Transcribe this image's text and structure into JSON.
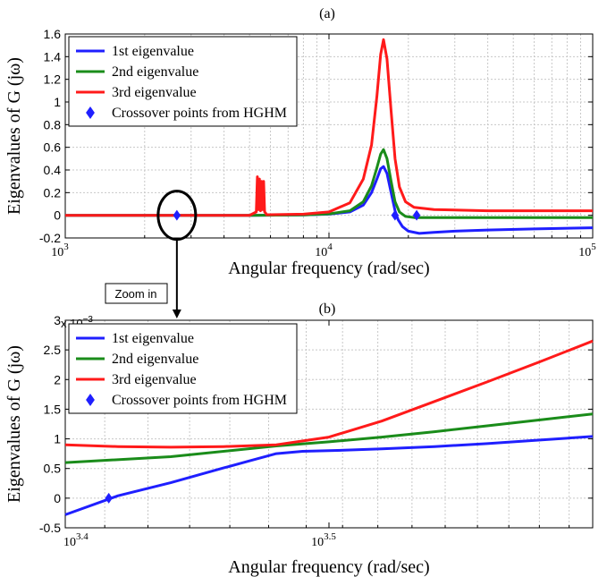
{
  "chart_data": [
    {
      "type": "line",
      "panel": "(a)",
      "title": "(a)",
      "xlabel": "Angular frequency (rad/sec)",
      "ylabel": "Eigenvalues of G (jω)",
      "xscale": "log",
      "xlim": [
        1000,
        100000
      ],
      "ylim": [
        -0.2,
        1.6
      ],
      "xtick_labels": [
        {
          "value": 1000,
          "base": "10",
          "exp": "3"
        },
        {
          "value": 10000,
          "base": "10",
          "exp": "4"
        },
        {
          "value": 100000,
          "base": "10",
          "exp": "5"
        }
      ],
      "yticks": [
        -0.2,
        0,
        0.2,
        0.4,
        0.6,
        0.8,
        1,
        1.2,
        1.4,
        1.6
      ],
      "grid": true,
      "legend_position": "top-left",
      "series": [
        {
          "name": "1st eigenvalue",
          "color": "#1f1fff",
          "x": [
            1000,
            2000,
            5000,
            8000,
            10000,
            12000,
            13500,
            14500,
            15200,
            15700,
            16100,
            16600,
            17200,
            17800,
            18300,
            19000,
            20000,
            22000,
            25000,
            30000,
            40000,
            60000,
            100000
          ],
          "y": [
            0,
            0,
            0,
            0.003,
            0.01,
            0.03,
            0.09,
            0.2,
            0.32,
            0.41,
            0.43,
            0.37,
            0.2,
            0.04,
            -0.04,
            -0.1,
            -0.14,
            -0.16,
            -0.15,
            -0.14,
            -0.13,
            -0.12,
            -0.11
          ]
        },
        {
          "name": "2nd eigenvalue",
          "color": "#1a8c1a",
          "x": [
            1000,
            2000,
            5000,
            8000,
            10000,
            12000,
            13500,
            14500,
            15200,
            15700,
            16100,
            16600,
            17200,
            17800,
            18500,
            19500,
            21000,
            25000,
            40000,
            100000
          ],
          "y": [
            0,
            0,
            0,
            0.004,
            0.012,
            0.04,
            0.12,
            0.26,
            0.42,
            0.54,
            0.58,
            0.5,
            0.3,
            0.12,
            0.03,
            -0.01,
            -0.02,
            -0.02,
            -0.02,
            -0.02
          ]
        },
        {
          "name": "3rd eigenvalue",
          "color": "#ff1a1a",
          "x": [
            1000,
            2000,
            5000,
            5300,
            5350,
            5400,
            5450,
            5500,
            5550,
            5600,
            5650,
            5700,
            5750,
            5800,
            6000,
            8000,
            10000,
            12000,
            13500,
            14500,
            15200,
            15700,
            16100,
            16600,
            17200,
            17800,
            18500,
            19500,
            21000,
            25000,
            40000,
            100000
          ],
          "y": [
            0,
            0,
            0,
            0.03,
            0.34,
            0.05,
            0.32,
            0.04,
            0.3,
            0.05,
            0.3,
            0.03,
            0.02,
            0.005,
            0.005,
            0.01,
            0.03,
            0.11,
            0.32,
            0.62,
            1.05,
            1.42,
            1.55,
            1.38,
            0.92,
            0.5,
            0.25,
            0.12,
            0.07,
            0.05,
            0.04,
            0.04
          ]
        }
      ],
      "crossover_points": {
        "name": "Crossover points from HGHM",
        "color": "#1f1fff",
        "x": [
          2650,
          17800,
          21500
        ],
        "y": [
          0,
          0,
          0
        ]
      },
      "annotation": {
        "label": "Zoom in",
        "circle_at": [
          2650,
          0
        ]
      }
    },
    {
      "type": "line",
      "panel": "(b)",
      "title": "(b)",
      "xlabel": "Angular frequency (rad/sec)",
      "ylabel": "Eigenvalues of G (jω)",
      "xscale": "log",
      "xlim_log10": [
        3.4,
        3.6
      ],
      "ylim": [
        -0.0005,
        0.003
      ],
      "y_multiplier": "x 10",
      "y_multiplier_exp": "−3",
      "xtick_labels": [
        {
          "log10": 3.4,
          "base": "10",
          "exp": "3.4"
        },
        {
          "log10": 3.5,
          "base": "10",
          "exp": "3.5"
        }
      ],
      "yticks": [
        -0.5,
        0,
        0.5,
        1,
        1.5,
        2,
        2.5,
        3
      ],
      "ytick_labels": [
        "-0.5",
        "0",
        "0.5",
        "1",
        "1.5",
        "2",
        "2.5",
        "3"
      ],
      "grid": true,
      "legend_position": "top-left",
      "series": [
        {
          "name": "1st eigenvalue",
          "color": "#1f1fff",
          "x_log10": [
            3.4,
            3.42,
            3.44,
            3.46,
            3.47,
            3.48,
            3.49,
            3.5,
            3.52,
            3.54,
            3.56,
            3.58,
            3.6
          ],
          "y": [
            -0.00028,
            4e-05,
            0.00026,
            0.00051,
            0.00063,
            0.00075,
            0.00079,
            0.0008,
            0.00083,
            0.00087,
            0.00092,
            0.00098,
            0.00104
          ]
        },
        {
          "name": "2nd eigenvalue",
          "color": "#1a8c1a",
          "x_log10": [
            3.4,
            3.44,
            3.48,
            3.5,
            3.52,
            3.54,
            3.56,
            3.58,
            3.6
          ],
          "y": [
            0.0006,
            0.0007,
            0.00088,
            0.00095,
            0.00103,
            0.00112,
            0.00122,
            0.00132,
            0.00142
          ]
        },
        {
          "name": "3rd eigenvalue",
          "color": "#ff1a1a",
          "x_log10": [
            3.4,
            3.42,
            3.44,
            3.46,
            3.48,
            3.5,
            3.52,
            3.54,
            3.56,
            3.58,
            3.6
          ],
          "y": [
            0.0009,
            0.00087,
            0.00086,
            0.00087,
            0.0009,
            0.00103,
            0.0013,
            0.00163,
            0.00196,
            0.0023,
            0.00265
          ]
        }
      ],
      "crossover_points": {
        "name": "Crossover points from HGHM",
        "color": "#1f1fff",
        "x_log10": [
          3.4165
        ],
        "y": [
          0
        ]
      }
    }
  ]
}
